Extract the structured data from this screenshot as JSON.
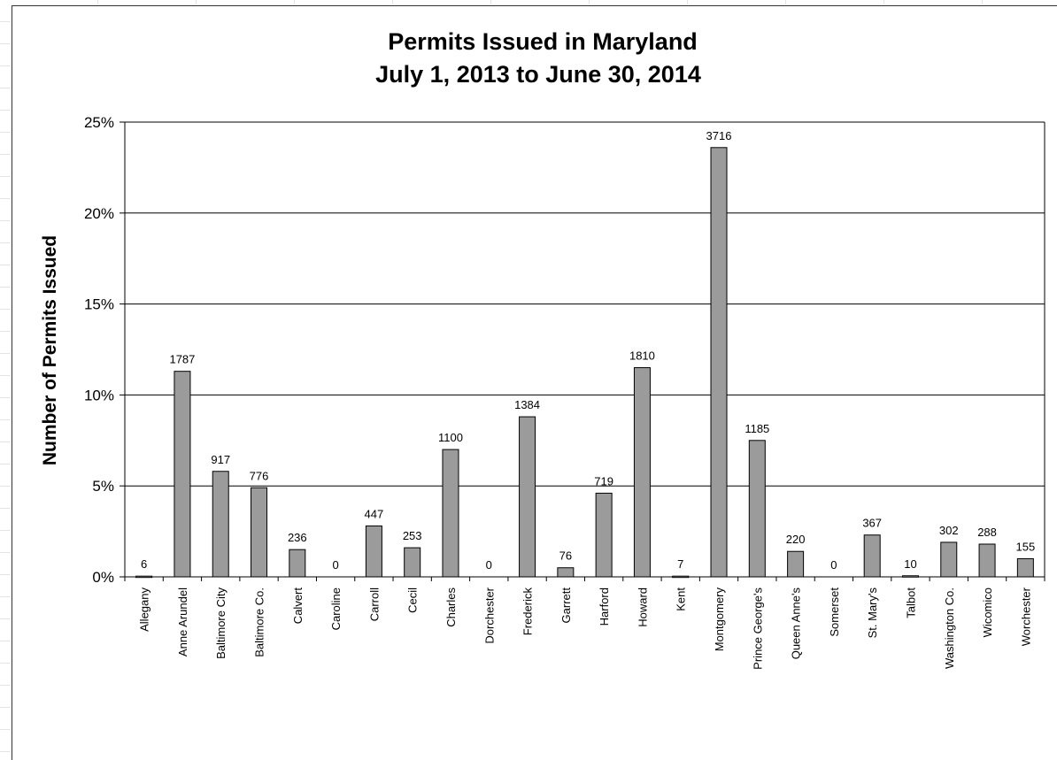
{
  "chart_data": {
    "type": "bar",
    "title": [
      "Permits Issued in Maryland",
      "July 1, 2013 to June 30, 2014"
    ],
    "ylabel": "Number of Permits Issued",
    "xlabel": "",
    "ylim": [
      0,
      25
    ],
    "yticks": [
      "0%",
      "5%",
      "10%",
      "15%",
      "20%",
      "25%"
    ],
    "grid": true,
    "categories": [
      "Allegany",
      "Anne Arundel",
      "Baltimore City",
      "Baltimore Co.",
      "Calvert",
      "Caroline",
      "Carroll",
      "Cecil",
      "Charles",
      "Dorchester",
      "Frederick",
      "Garrett",
      "Harford",
      "Howard",
      "Kent",
      "Montgomery",
      "Prince George's",
      "Queen Anne's",
      "Somerset",
      "St. Mary's",
      "Talbot",
      "Washington Co.",
      "Wicomico",
      "Worchester"
    ],
    "values_percent": [
      0.04,
      11.3,
      5.8,
      4.9,
      1.5,
      0,
      2.8,
      1.6,
      7.0,
      0,
      8.8,
      0.5,
      4.6,
      11.5,
      0.04,
      23.6,
      7.5,
      1.4,
      0,
      2.3,
      0.06,
      1.9,
      1.8,
      1.0
    ],
    "data_labels": [
      "6",
      "1787",
      "917",
      "776",
      "236",
      "0",
      "447",
      "253",
      "1100",
      "0",
      "1384",
      "76",
      "719",
      "1810",
      "7",
      "3716",
      "1185",
      "220",
      "0",
      "367",
      "10",
      "302",
      "288",
      "155"
    ],
    "bar_color": "#9b9b9b"
  }
}
